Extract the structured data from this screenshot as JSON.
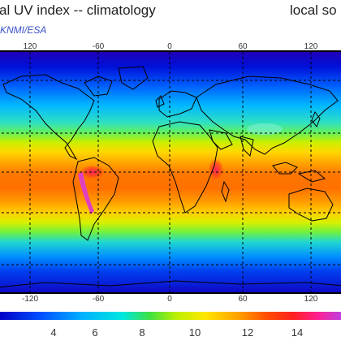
{
  "title_left": "al UV index -- climatology",
  "title_right": "local so",
  "credit": "KNMI/ESA",
  "longitude_ticks": [
    "120",
    "-60",
    "0",
    "60",
    "120"
  ],
  "longitude_ticks_bottom": [
    "-120",
    "-60",
    "0",
    "60",
    "120"
  ],
  "colorbar_ticks": [
    "4",
    "6",
    "8",
    "10",
    "12",
    "14"
  ],
  "colors": {
    "uv_low": "#0000c8",
    "uv_mid": "#00d0ff",
    "uv_green": "#40e040",
    "uv_yellow": "#ffe800",
    "uv_orange": "#ff8000",
    "uv_red": "#ff2020",
    "uv_magenta": "#e040c0",
    "graticule": "#000000",
    "coastline": "#000000"
  }
}
